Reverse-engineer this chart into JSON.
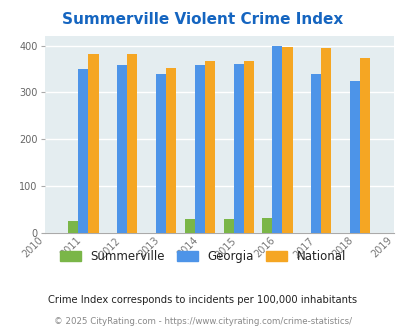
{
  "title": "Summerville Violent Crime Index",
  "all_years": [
    2010,
    2011,
    2012,
    2013,
    2014,
    2015,
    2016,
    2017,
    2018,
    2019
  ],
  "data_years": [
    2011,
    2012,
    2013,
    2014,
    2015,
    2016,
    2017,
    2018
  ],
  "summerville": [
    25,
    0,
    0,
    30,
    30,
    32,
    0,
    0
  ],
  "georgia": [
    350,
    358,
    340,
    358,
    360,
    400,
    340,
    325
  ],
  "national": [
    383,
    382,
    352,
    368,
    368,
    397,
    394,
    373
  ],
  "summerville_color": "#7ab648",
  "georgia_color": "#4d94e8",
  "national_color": "#f5a623",
  "bg_color": "#e4edf0",
  "title_color": "#1565c0",
  "footer1": "Crime Index corresponds to incidents per 100,000 inhabitants",
  "footer2": "© 2025 CityRating.com - https://www.cityrating.com/crime-statistics/",
  "legend_labels": [
    "Summerville",
    "Georgia",
    "National"
  ]
}
